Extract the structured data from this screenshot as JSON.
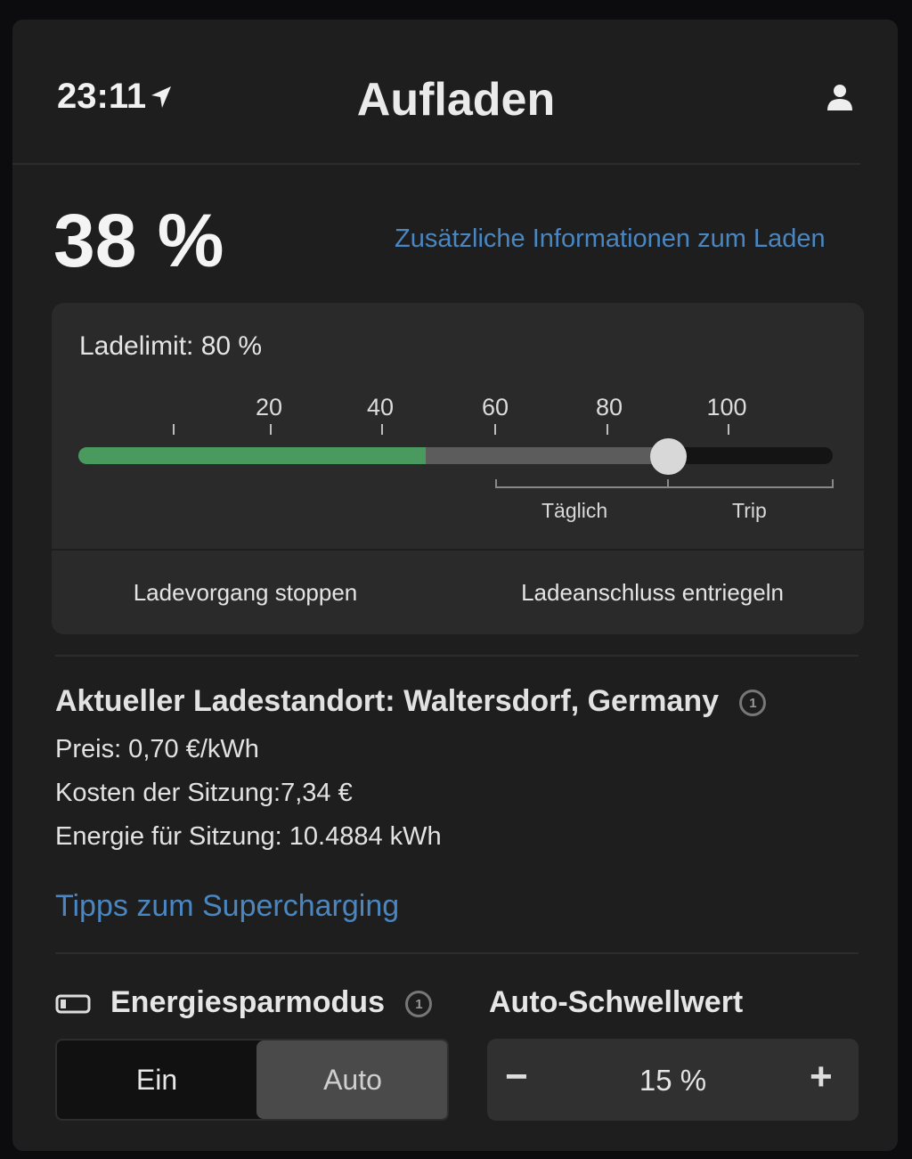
{
  "status_bar": {
    "time": "23:11",
    "location_icon": "location-arrow-icon"
  },
  "header": {
    "title": "Aufladen",
    "profile_icon": "user-icon"
  },
  "charge": {
    "level": "38 %",
    "level_value": 38,
    "more_info_link": "Zusätzliche Informationen zum Laden"
  },
  "limit": {
    "label": "Ladelimit: 80 %",
    "limit_value": 80,
    "tick_labels": [
      "20",
      "40",
      "60",
      "80",
      "100"
    ],
    "range_labels": {
      "daily": "Täglich",
      "trip": "Trip"
    },
    "colors": {
      "charged": "#4a9a60",
      "limit": "#5c5c5c",
      "rest": "#141414"
    }
  },
  "actions": {
    "stop": "Ladevorgang stoppen",
    "unlock": "Ladeanschluss entriegeln"
  },
  "location": {
    "title": "Aktueller Ladestandort: Waltersdorf, Germany",
    "price": "Preis: 0,70 €/kWh",
    "cost": "Kosten der Sitzung:7,34 €",
    "energy": "Energie für Sitzung: 10.4884 kWh",
    "tips_link": "Tipps zum Supercharging"
  },
  "energy_saver": {
    "label": "Energiesparmodus",
    "options": [
      "Ein",
      "Auto"
    ],
    "selected": "Auto"
  },
  "threshold": {
    "label": "Auto-Schwellwert",
    "value": "15 %",
    "minus": "−",
    "plus": "+"
  }
}
